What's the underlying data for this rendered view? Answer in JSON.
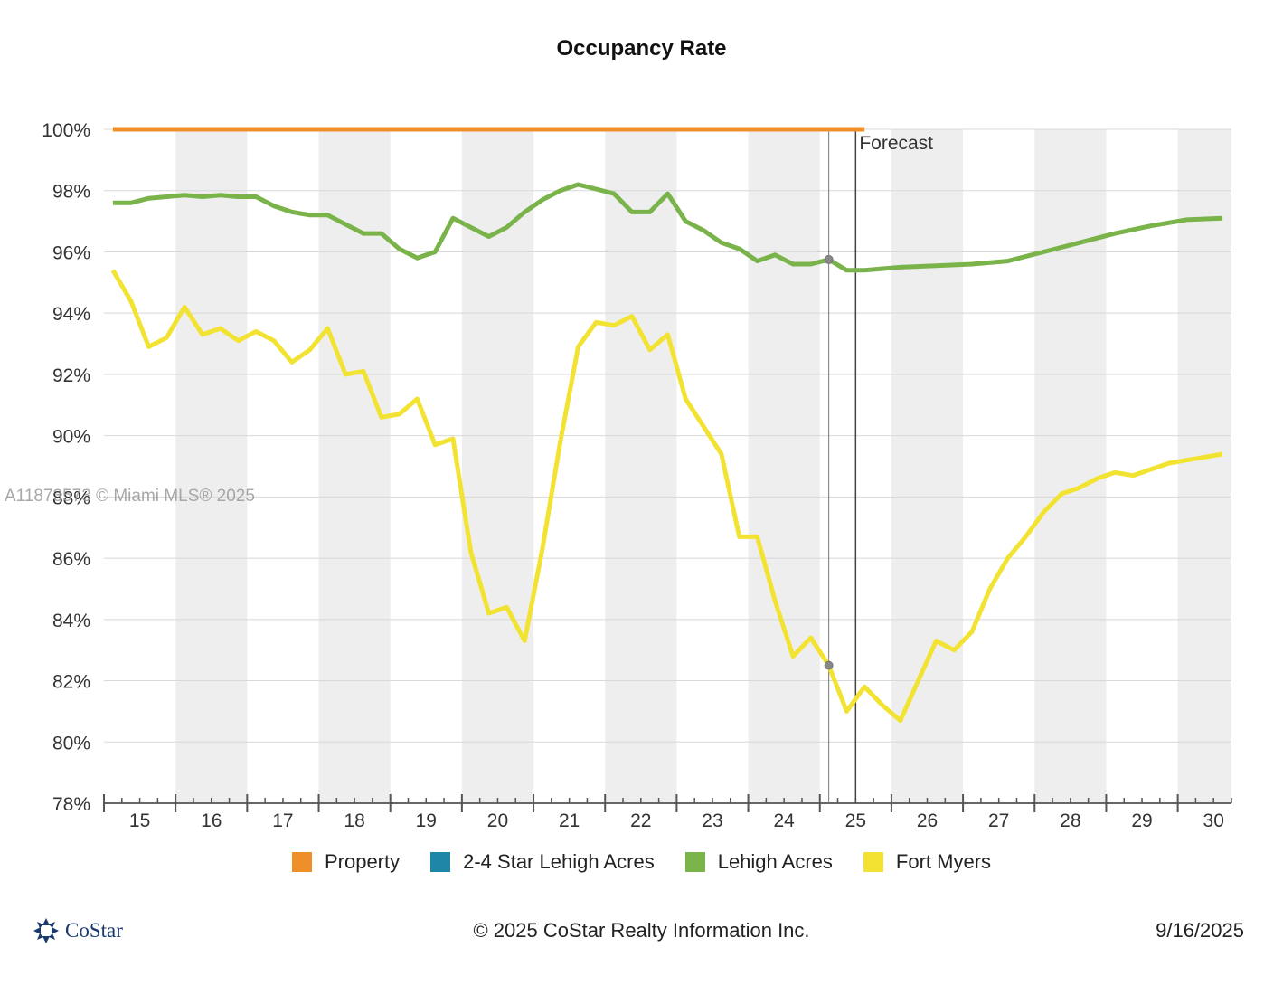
{
  "chart_data": {
    "type": "line",
    "title": "Occupancy Rate",
    "xlabel": "",
    "ylabel": "",
    "ylim": [
      78,
      100
    ],
    "xlim": [
      14.5,
      30.25
    ],
    "y_ticks": [
      "100%",
      "98%",
      "96%",
      "94%",
      "92%",
      "90%",
      "88%",
      "86%",
      "84%",
      "82%",
      "80%",
      "78%"
    ],
    "x_ticks": [
      "15",
      "16",
      "17",
      "18",
      "19",
      "20",
      "21",
      "22",
      "23",
      "24",
      "25",
      "26",
      "27",
      "28",
      "29",
      "30"
    ],
    "forecast_label": "Forecast",
    "forecast_start": 25,
    "current_marker": 24.625,
    "grid": true,
    "legend_position": "bottom",
    "series": [
      {
        "name": "Property",
        "color": "#ef8f2a",
        "points": [
          [
            14.625,
            100
          ],
          [
            25.125,
            100
          ]
        ]
      },
      {
        "name": "2-4 Star Lehigh Acres",
        "color": "#1f86a8",
        "points": []
      },
      {
        "name": "Lehigh Acres",
        "color": "#79b34a",
        "points": [
          [
            14.625,
            97.6
          ],
          [
            14.875,
            97.6
          ],
          [
            15.125,
            97.75
          ],
          [
            15.375,
            97.8
          ],
          [
            15.625,
            97.85
          ],
          [
            15.875,
            97.8
          ],
          [
            16.125,
            97.85
          ],
          [
            16.375,
            97.8
          ],
          [
            16.625,
            97.8
          ],
          [
            16.875,
            97.5
          ],
          [
            17.125,
            97.3
          ],
          [
            17.375,
            97.2
          ],
          [
            17.625,
            97.2
          ],
          [
            17.875,
            96.9
          ],
          [
            18.125,
            96.6
          ],
          [
            18.375,
            96.6
          ],
          [
            18.625,
            96.1
          ],
          [
            18.875,
            95.8
          ],
          [
            19.125,
            96.0
          ],
          [
            19.375,
            97.1
          ],
          [
            19.625,
            96.8
          ],
          [
            19.875,
            96.5
          ],
          [
            20.125,
            96.8
          ],
          [
            20.375,
            97.3
          ],
          [
            20.625,
            97.7
          ],
          [
            20.875,
            98.0
          ],
          [
            21.125,
            98.2
          ],
          [
            21.375,
            98.05
          ],
          [
            21.625,
            97.9
          ],
          [
            21.875,
            97.3
          ],
          [
            22.125,
            97.3
          ],
          [
            22.375,
            97.9
          ],
          [
            22.625,
            97.0
          ],
          [
            22.875,
            96.7
          ],
          [
            23.125,
            96.3
          ],
          [
            23.375,
            96.1
          ],
          [
            23.625,
            95.7
          ],
          [
            23.875,
            95.9
          ],
          [
            24.125,
            95.6
          ],
          [
            24.375,
            95.6
          ],
          [
            24.625,
            95.75
          ],
          [
            24.875,
            95.4
          ],
          [
            25.125,
            95.4
          ],
          [
            25.625,
            95.5
          ],
          [
            26.125,
            95.55
          ],
          [
            26.625,
            95.6
          ],
          [
            27.125,
            95.7
          ],
          [
            27.625,
            96.0
          ],
          [
            28.125,
            96.3
          ],
          [
            28.625,
            96.6
          ],
          [
            29.125,
            96.85
          ],
          [
            29.625,
            97.05
          ],
          [
            30.125,
            97.1
          ]
        ]
      },
      {
        "name": "Fort Myers",
        "color": "#f2e333",
        "points": [
          [
            14.625,
            95.4
          ],
          [
            14.875,
            94.4
          ],
          [
            15.125,
            92.9
          ],
          [
            15.375,
            93.2
          ],
          [
            15.625,
            94.2
          ],
          [
            15.875,
            93.3
          ],
          [
            16.125,
            93.5
          ],
          [
            16.375,
            93.1
          ],
          [
            16.625,
            93.4
          ],
          [
            16.875,
            93.1
          ],
          [
            17.125,
            92.4
          ],
          [
            17.375,
            92.8
          ],
          [
            17.625,
            93.5
          ],
          [
            17.875,
            92.0
          ],
          [
            18.125,
            92.1
          ],
          [
            18.375,
            90.6
          ],
          [
            18.625,
            90.7
          ],
          [
            18.875,
            91.2
          ],
          [
            19.125,
            89.7
          ],
          [
            19.375,
            89.9
          ],
          [
            19.625,
            86.2
          ],
          [
            19.875,
            84.2
          ],
          [
            20.125,
            84.4
          ],
          [
            20.375,
            83.3
          ],
          [
            20.625,
            86.3
          ],
          [
            20.875,
            89.8
          ],
          [
            21.125,
            92.9
          ],
          [
            21.375,
            93.7
          ],
          [
            21.625,
            93.6
          ],
          [
            21.875,
            93.9
          ],
          [
            22.125,
            92.8
          ],
          [
            22.375,
            93.3
          ],
          [
            22.625,
            91.2
          ],
          [
            22.875,
            90.3
          ],
          [
            23.125,
            89.4
          ],
          [
            23.375,
            86.7
          ],
          [
            23.625,
            86.7
          ],
          [
            23.875,
            84.6
          ],
          [
            24.125,
            82.8
          ],
          [
            24.375,
            83.4
          ],
          [
            24.625,
            82.5
          ],
          [
            24.875,
            81.0
          ],
          [
            25.125,
            81.8
          ],
          [
            25.375,
            81.2
          ],
          [
            25.625,
            80.7
          ],
          [
            25.875,
            82.0
          ],
          [
            26.125,
            83.3
          ],
          [
            26.375,
            83.0
          ],
          [
            26.625,
            83.6
          ],
          [
            26.875,
            85.0
          ],
          [
            27.125,
            86.0
          ],
          [
            27.375,
            86.7
          ],
          [
            27.625,
            87.5
          ],
          [
            27.875,
            88.1
          ],
          [
            28.125,
            88.3
          ],
          [
            28.375,
            88.6
          ],
          [
            28.625,
            88.8
          ],
          [
            28.875,
            88.7
          ],
          [
            29.125,
            88.9
          ],
          [
            29.375,
            89.1
          ],
          [
            29.625,
            89.2
          ],
          [
            29.875,
            89.3
          ],
          [
            30.125,
            89.4
          ]
        ]
      }
    ]
  },
  "legend": {
    "items": [
      {
        "label": "Property",
        "color": "#ef8f2a"
      },
      {
        "label": "2-4 Star Lehigh Acres",
        "color": "#1f86a8"
      },
      {
        "label": "Lehigh Acres",
        "color": "#79b34a"
      },
      {
        "label": "Fort Myers",
        "color": "#f2e333"
      }
    ]
  },
  "watermark": "A11873573 © Miami MLS® 2025",
  "footer": {
    "logo_text": "CoStar",
    "copyright": "© 2025 CoStar Realty Information Inc.",
    "date": "9/16/2025"
  }
}
